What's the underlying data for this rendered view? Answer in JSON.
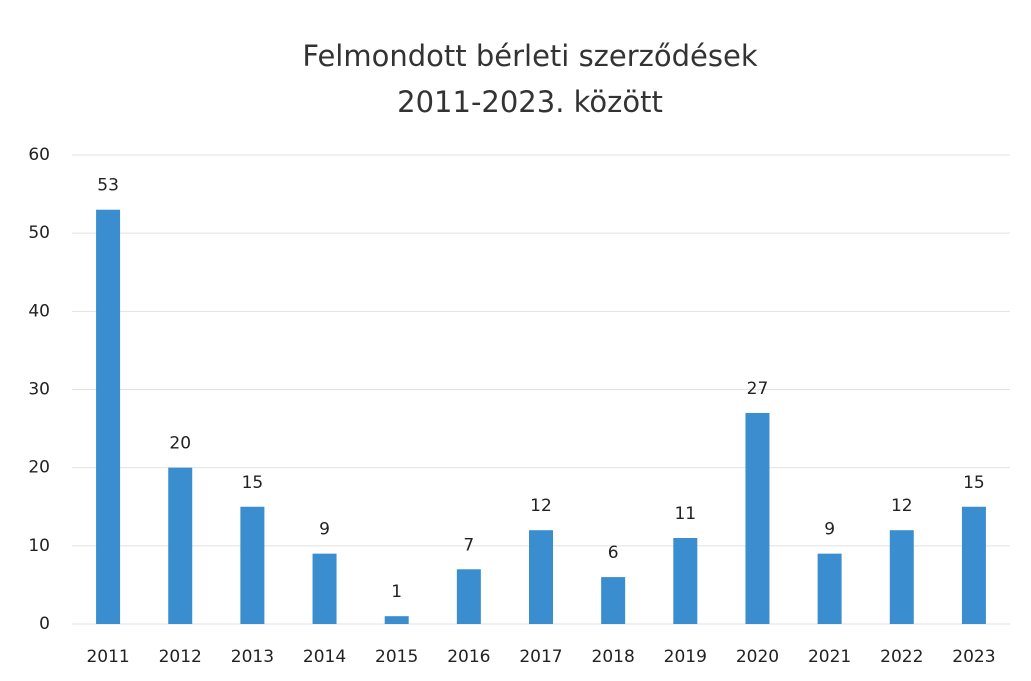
{
  "chart_data": {
    "type": "bar",
    "title": [
      "Felmondott bérleti szerződések",
      "2011-2023. között"
    ],
    "categories": [
      "2011",
      "2012",
      "2013",
      "2014",
      "2015",
      "2016",
      "2017",
      "2018",
      "2019",
      "2020",
      "2021",
      "2022",
      "2023"
    ],
    "values": [
      53,
      20,
      15,
      9,
      1,
      7,
      12,
      6,
      11,
      27,
      9,
      12,
      15
    ],
    "color": "#3a8dcf",
    "ylim": [
      0,
      60
    ],
    "yticks": [
      0,
      10,
      20,
      30,
      40,
      50,
      60
    ],
    "grid": true,
    "data_labels": true
  }
}
